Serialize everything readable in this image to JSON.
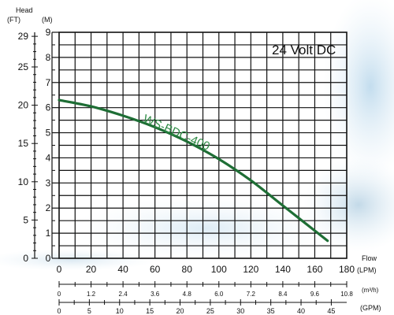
{
  "chart_data": {
    "type": "line",
    "title": "24 Volt DC",
    "head_label": "Head",
    "flow_label": "Flow",
    "y_left_unit": "(FT)",
    "y_right_unit": "(M)",
    "y_m_range": [
      0,
      9
    ],
    "y_m_ticks": [
      "0",
      "1",
      "2",
      "3",
      "4",
      "5",
      "6",
      "7",
      "8",
      "9"
    ],
    "y_ft_ticks": [
      {
        "value": 0,
        "label": "0"
      },
      {
        "value": 5,
        "label": "5"
      },
      {
        "value": 10,
        "label": "10"
      },
      {
        "value": 15,
        "label": "15"
      },
      {
        "value": 20,
        "label": "20"
      },
      {
        "value": 25,
        "label": "25"
      },
      {
        "value": 29,
        "label": "29"
      }
    ],
    "x_lpm_range": [
      0,
      180
    ],
    "x_lpm_ticks": [
      "0",
      "20",
      "40",
      "60",
      "80",
      "100",
      "120",
      "140",
      "160",
      "180"
    ],
    "x_lpm_unit": "(LPM)",
    "x_m3h_ticks": [
      "0",
      "1.2",
      "2.4",
      "3.6",
      "4.8",
      "6.0",
      "7.2",
      "8.4",
      "9.6",
      "10.8"
    ],
    "x_m3h_unit": "(m³/h)",
    "x_gpm_ticks": [
      "0",
      "5",
      "10",
      "15",
      "20",
      "25",
      "30",
      "35",
      "40",
      "45"
    ],
    "x_gpm_unit": "(GPM)",
    "grid": true,
    "colors": {
      "curve": "#1e6e35",
      "curve_label": "#2e8b45",
      "grid": "#111111"
    },
    "series": [
      {
        "name": "WS-BDC-400",
        "x": [
          0,
          20,
          40,
          60,
          80,
          100,
          120,
          140,
          160,
          168
        ],
        "y": [
          6.3,
          6.05,
          5.68,
          5.22,
          4.65,
          3.95,
          3.1,
          2.1,
          1.1,
          0.7
        ]
      }
    ]
  }
}
